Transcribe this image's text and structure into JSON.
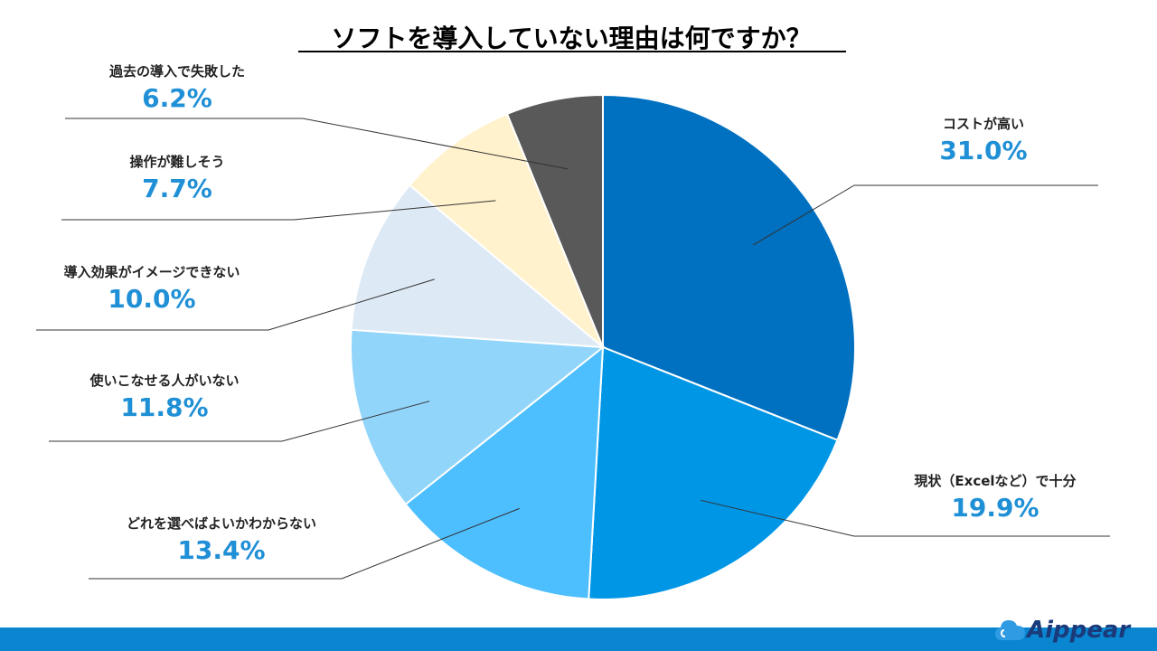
{
  "chart_data": {
    "type": "pie",
    "title": "ソフトを導入していない理由は何ですか？",
    "categories": [
      "コストが高い",
      "現状（Excelなど）で十分",
      "どれを選べばよいかわからない",
      "使いこなせる人がいない",
      "導入効果がイメージできない",
      "操作が難しそう",
      "過去の導入で失敗した"
    ],
    "values": [
      31.0,
      19.9,
      13.4,
      11.8,
      10.0,
      7.7,
      6.2
    ],
    "labels": [
      "31.0%",
      "19.9%",
      "13.4%",
      "11.8%",
      "10.0%",
      "7.7%",
      "6.2%"
    ],
    "colors": [
      "#0070c0",
      "#0096e6",
      "#4dbfff",
      "#92d5fb",
      "#dde9f5",
      "#fff2cc",
      "#595959"
    ],
    "start": "12 o'clock",
    "direction": "clockwise"
  },
  "brand": {
    "logo_text": "Aippear",
    "bar_color": "#0a86d1"
  }
}
